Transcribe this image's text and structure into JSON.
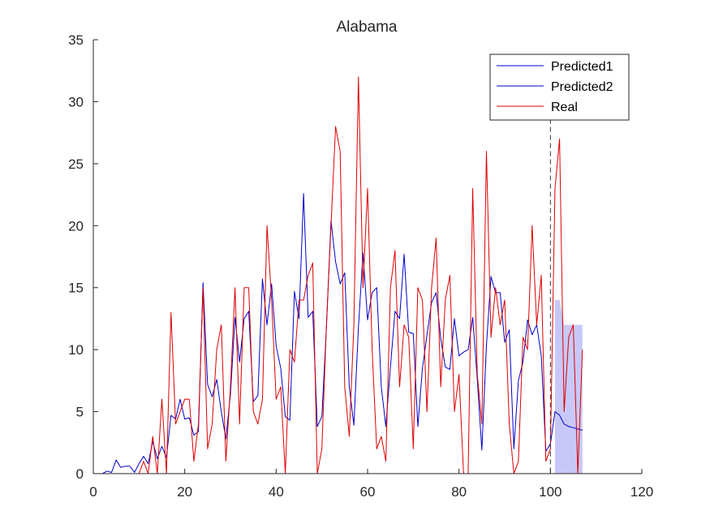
{
  "chart_data": {
    "type": "line",
    "title": "Alabama",
    "xlabel": "",
    "ylabel": "",
    "xlim": [
      0,
      120
    ],
    "ylim": [
      0,
      35
    ],
    "xticks": [
      0,
      20,
      40,
      60,
      80,
      100,
      120
    ],
    "yticks": [
      0,
      5,
      10,
      15,
      20,
      25,
      30,
      35
    ],
    "grid": false,
    "legend_position": "top-right",
    "forecast_start_x": 100,
    "band": {
      "color": "#c8c8f8",
      "x": [
        101,
        102,
        103,
        104,
        105,
        106,
        107
      ],
      "lower": [
        0,
        0,
        0,
        0,
        0,
        0,
        0
      ],
      "upper": [
        14,
        14,
        12,
        12,
        12,
        12,
        12
      ]
    },
    "series": [
      {
        "name": "Predicted1",
        "color": "#0000cc",
        "x": [
          1,
          2,
          3,
          4,
          5,
          6,
          7,
          8,
          9,
          10,
          11,
          12,
          13,
          14,
          15,
          16,
          17,
          18,
          19,
          20,
          21,
          22,
          23,
          24,
          25,
          26,
          27,
          28,
          29,
          30,
          31,
          32,
          33,
          34,
          35,
          36,
          37,
          38,
          39,
          40,
          41,
          42,
          43,
          44,
          45,
          46,
          47,
          48,
          49,
          50,
          51,
          52,
          53,
          54,
          55,
          56,
          57,
          58,
          59,
          60,
          61,
          62,
          63,
          64,
          65,
          66,
          67,
          68,
          69,
          70,
          71,
          72,
          73,
          74,
          75,
          76,
          77,
          78,
          79,
          80,
          81,
          82,
          83,
          84,
          85,
          86,
          87,
          88,
          89,
          90,
          91,
          92,
          93,
          94,
          95,
          96,
          97,
          98,
          99,
          100
        ],
        "values": [
          0,
          0,
          0.2,
          0.1,
          1.1,
          0.5,
          0.6,
          0.6,
          0.1,
          0.8,
          1.4,
          0.8,
          2.6,
          1.2,
          2.2,
          1.3,
          4.7,
          4.4,
          6,
          4.4,
          4.5,
          3.1,
          3.4,
          15.4,
          7.2,
          6.2,
          7.6,
          5,
          2.8,
          6.4,
          12.6,
          9,
          12.5,
          13.1,
          5.8,
          6.3,
          15.7,
          12,
          15.3,
          10.3,
          8.5,
          4.6,
          4.3,
          14.7,
          12.5,
          22.6,
          12.6,
          13.1,
          3.8,
          4.6,
          11.8,
          20.4,
          17.1,
          15.3,
          16.2,
          7,
          3.9,
          11.8,
          17.8,
          12.4,
          14.6,
          15,
          7,
          3.8,
          8.6,
          13.1,
          12.5,
          17.7,
          11.4,
          11.3,
          3.8,
          8.5,
          11.2,
          13.8,
          14.6,
          10.9,
          8.6,
          8.4,
          12.5,
          9.5,
          9.8,
          10,
          12.6,
          7.6,
          1.9,
          10.3,
          15.9,
          14.6,
          14.6,
          10.6,
          11.6,
          2,
          7.5,
          9,
          12.4,
          11.2,
          12,
          9.5,
          1.8,
          2.4
        ]
      },
      {
        "name": "Predicted2",
        "color": "#0000cc",
        "x": [
          100,
          101,
          102,
          103,
          104,
          105,
          106,
          107
        ],
        "values": [
          2.4,
          5,
          4.7,
          4,
          3.8,
          3.7,
          3.6,
          3.5
        ]
      },
      {
        "name": "Real",
        "color": "#dd0000",
        "x": [
          1,
          2,
          3,
          4,
          5,
          6,
          7,
          8,
          9,
          10,
          11,
          12,
          13,
          14,
          15,
          16,
          17,
          18,
          19,
          20,
          21,
          22,
          23,
          24,
          25,
          26,
          27,
          28,
          29,
          30,
          31,
          32,
          33,
          34,
          35,
          36,
          37,
          38,
          39,
          40,
          41,
          42,
          43,
          44,
          45,
          46,
          47,
          48,
          49,
          50,
          51,
          52,
          53,
          54,
          55,
          56,
          57,
          58,
          59,
          60,
          61,
          62,
          63,
          64,
          65,
          66,
          67,
          68,
          69,
          70,
          71,
          72,
          73,
          74,
          75,
          76,
          77,
          78,
          79,
          80,
          81,
          82,
          83,
          84,
          85,
          86,
          87,
          88,
          89,
          90,
          91,
          92,
          93,
          94,
          95,
          96,
          97,
          98,
          99,
          100,
          101,
          102,
          103,
          104,
          105,
          106,
          107
        ],
        "values": [
          0,
          0,
          0,
          0,
          0,
          0,
          0,
          0,
          0,
          0,
          1,
          0,
          3,
          0,
          6,
          0,
          13,
          4,
          5,
          6,
          6,
          1,
          4,
          15,
          2,
          4,
          10,
          12,
          1,
          7,
          15,
          4,
          15,
          15,
          5,
          4,
          6,
          20,
          14,
          6,
          7,
          0,
          10,
          9,
          14,
          14,
          16,
          17,
          0,
          2,
          12,
          20,
          28,
          26,
          7,
          3,
          12,
          32,
          15,
          23,
          10,
          2,
          3,
          1,
          15,
          18,
          7,
          12,
          11,
          2,
          15,
          14,
          5,
          15,
          19,
          7,
          14,
          16,
          5,
          8,
          0,
          0,
          23,
          8,
          4,
          26,
          11,
          15,
          12,
          14,
          4,
          0,
          1,
          11,
          10,
          20,
          12,
          16,
          1,
          2,
          23,
          27,
          5,
          11,
          12,
          0,
          10
        ]
      }
    ]
  }
}
